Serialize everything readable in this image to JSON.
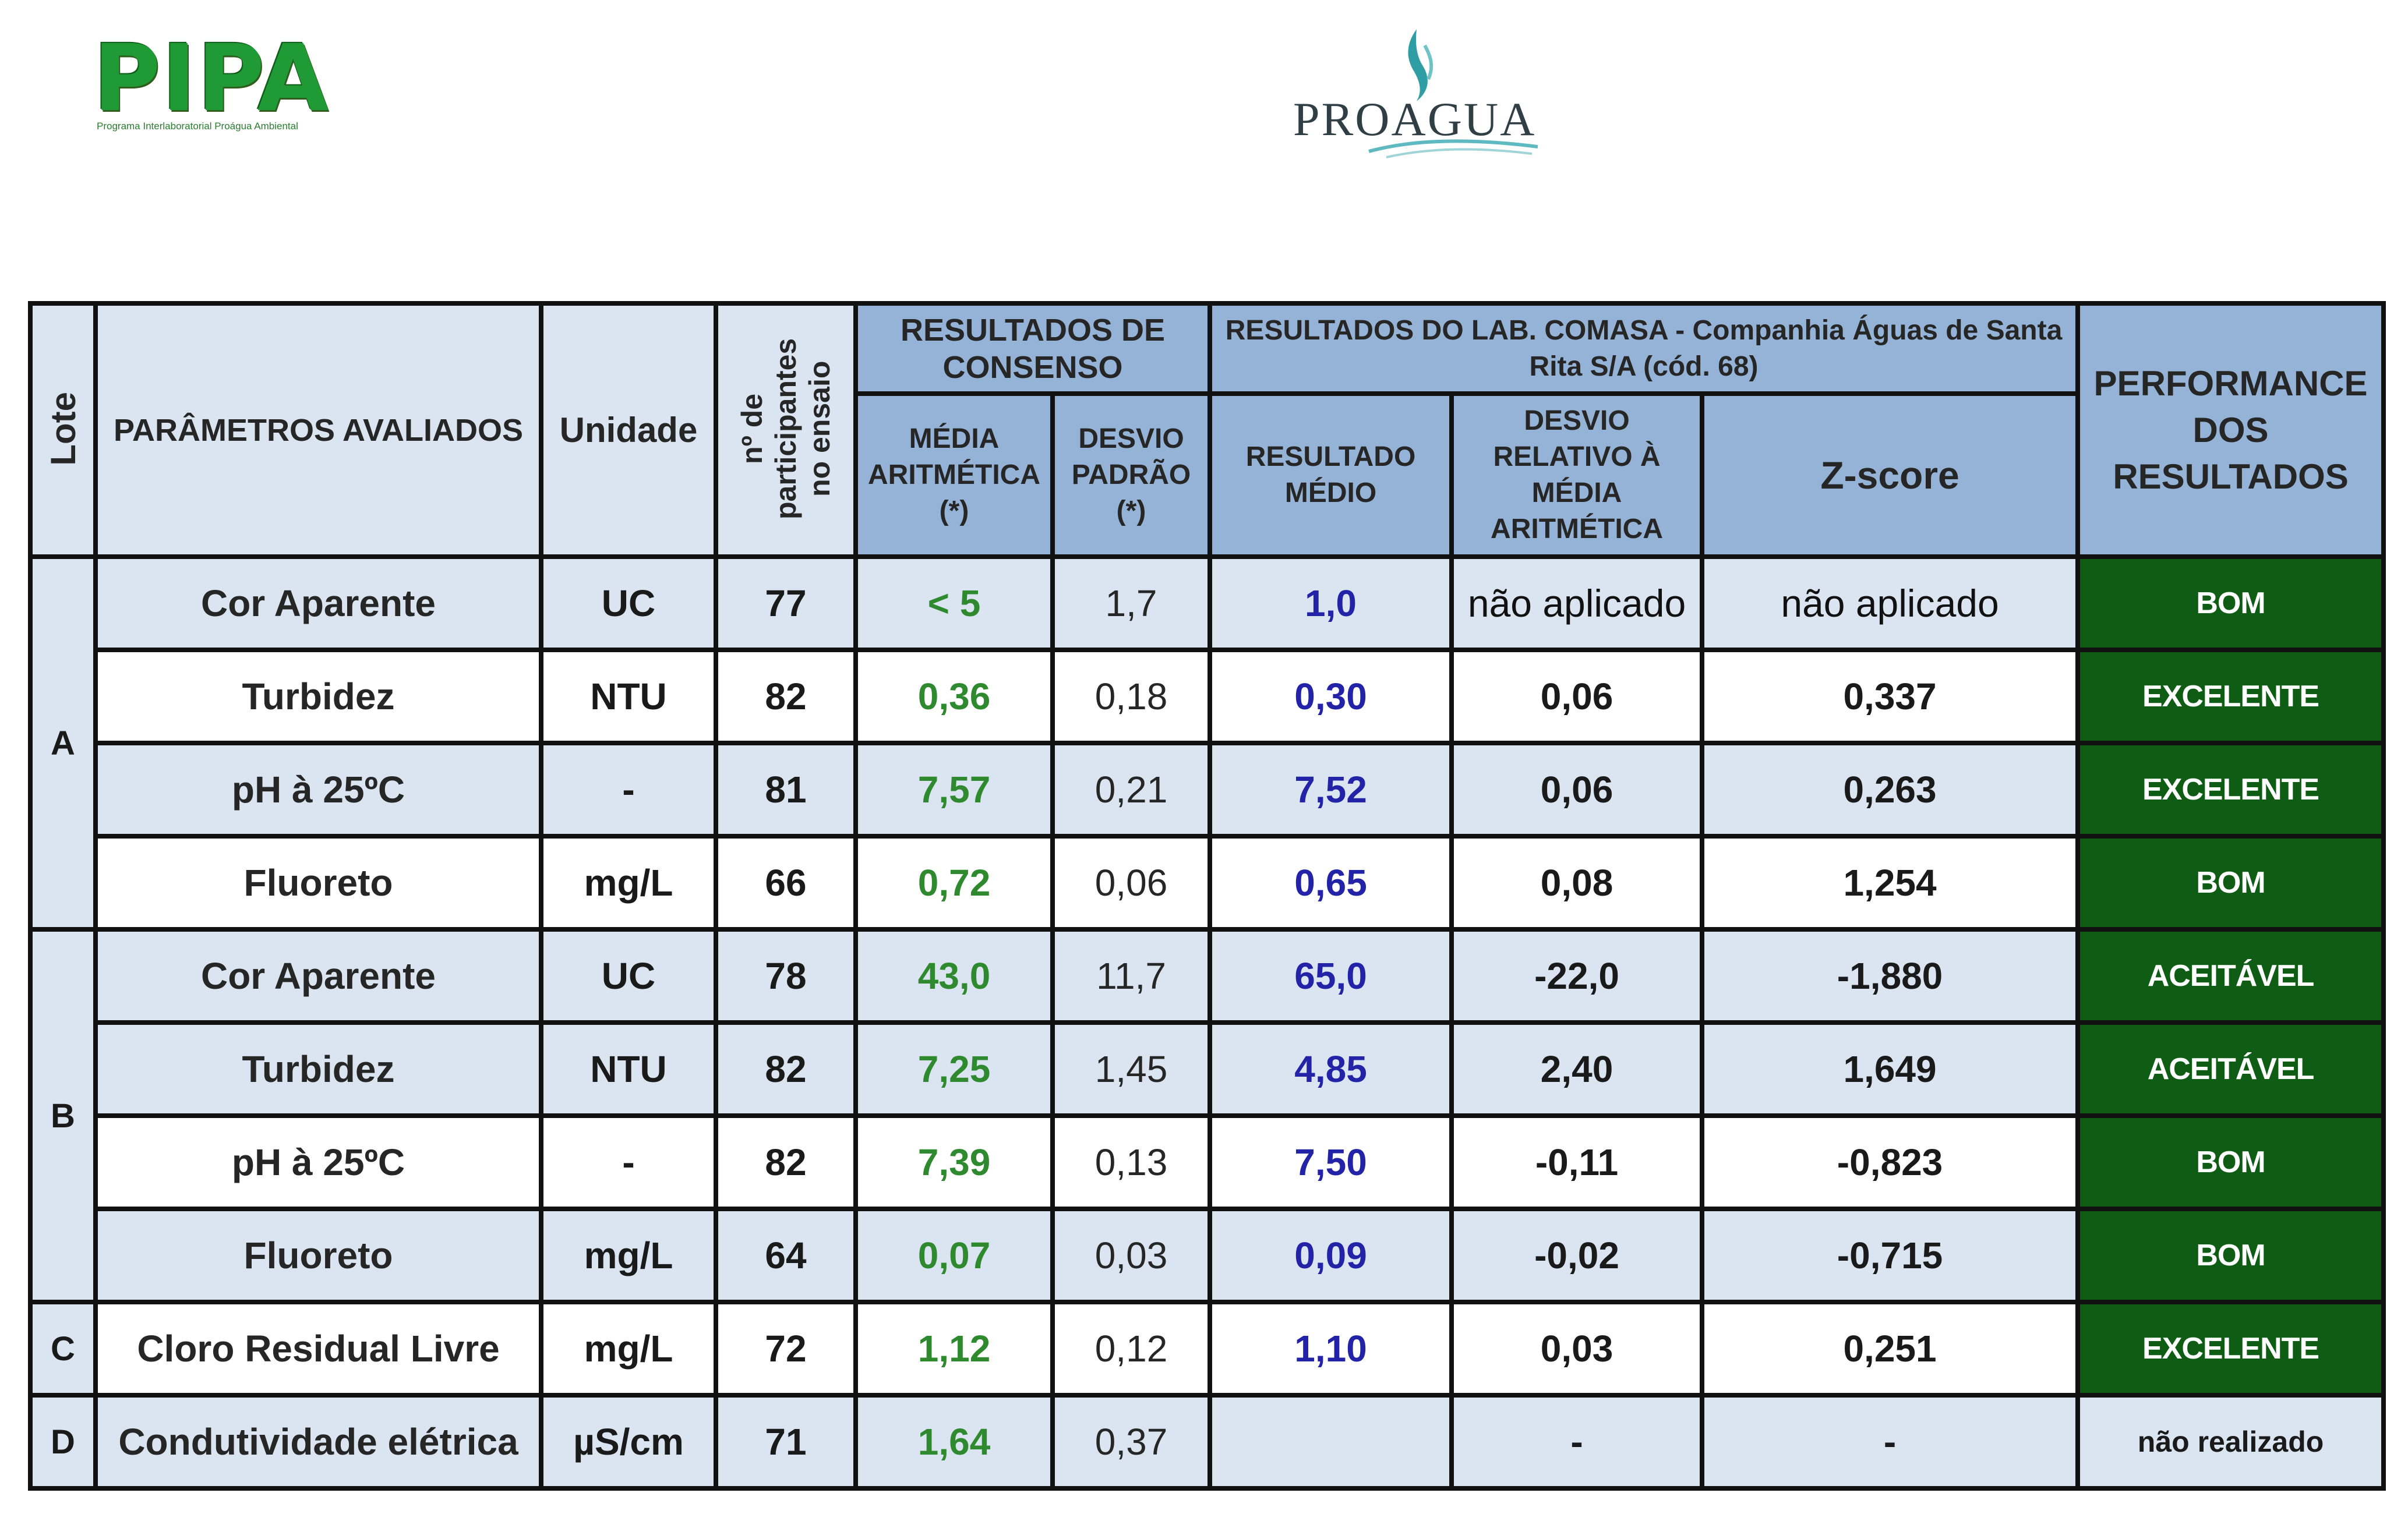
{
  "logos": {
    "pipa": {
      "title": "PIPA",
      "subtitle": "Programa Interlaboratorial Proágua Ambiental"
    },
    "proagua": {
      "title": "PROAGUA"
    }
  },
  "table": {
    "headers": {
      "lote": "Lote",
      "parametros": "PARÂMETROS AVALIADOS",
      "unidade": "Unidade",
      "participantes": "nº de participantes no ensaio",
      "consenso": "RESULTADOS DE CONSENSO",
      "media": "MÉDIA ARITMÉTICA (*)",
      "desvio_padrao": "DESVIO PADRÃO (*)",
      "lab": "RESULTADOS DO LAB. COMASA - Companhia Águas de Santa Rita S/A (cód. 68)",
      "resultado_medio": "RESULTADO MÉDIO",
      "desvio_relativo": "DESVIO RELATIVO À MÉDIA ARITMÉTICA",
      "zscore": "Z-score",
      "performance": "PERFORMANCE DOS RESULTADOS"
    },
    "lotes": [
      {
        "label": "A",
        "rows": [
          {
            "param": "Cor Aparente",
            "unidade": "UC",
            "n": "77",
            "media": "< 5",
            "desvio": "1,7",
            "resultado": "1,0",
            "desvio_rel": "não aplicado",
            "zscore": "não aplicado",
            "performance": "BOM"
          },
          {
            "param": "Turbidez",
            "unidade": "NTU",
            "n": "82",
            "media": "0,36",
            "desvio": "0,18",
            "resultado": "0,30",
            "desvio_rel": "0,06",
            "zscore": "0,337",
            "performance": "EXCELENTE"
          },
          {
            "param": "pH à 25ºC",
            "unidade": "-",
            "n": "81",
            "media": "7,57",
            "desvio": "0,21",
            "resultado": "7,52",
            "desvio_rel": "0,06",
            "zscore": "0,263",
            "performance": "EXCELENTE"
          },
          {
            "param": "Fluoreto",
            "unidade": "mg/L",
            "n": "66",
            "media": "0,72",
            "desvio": "0,06",
            "resultado": "0,65",
            "desvio_rel": "0,08",
            "zscore": "1,254",
            "performance": "BOM"
          }
        ]
      },
      {
        "label": "B",
        "rows": [
          {
            "param": "Cor Aparente",
            "unidade": "UC",
            "n": "78",
            "media": "43,0",
            "desvio": "11,7",
            "resultado": "65,0",
            "desvio_rel": "-22,0",
            "zscore": "-1,880",
            "performance": "ACEITÁVEL"
          },
          {
            "param": "Turbidez",
            "unidade": "NTU",
            "n": "82",
            "media": "7,25",
            "desvio": "1,45",
            "resultado": "4,85",
            "desvio_rel": "2,40",
            "zscore": "1,649",
            "performance": "ACEITÁVEL"
          },
          {
            "param": "pH à 25ºC",
            "unidade": "-",
            "n": "82",
            "media": "7,39",
            "desvio": "0,13",
            "resultado": "7,50",
            "desvio_rel": "-0,11",
            "zscore": "-0,823",
            "performance": "BOM"
          },
          {
            "param": "Fluoreto",
            "unidade": "mg/L",
            "n": "64",
            "media": "0,07",
            "desvio": "0,03",
            "resultado": "0,09",
            "desvio_rel": "-0,02",
            "zscore": "-0,715",
            "performance": "BOM"
          }
        ]
      },
      {
        "label": "C",
        "rows": [
          {
            "param": "Cloro Residual Livre",
            "unidade": "mg/L",
            "n": "72",
            "media": "1,12",
            "desvio": "0,12",
            "resultado": "1,10",
            "desvio_rel": "0,03",
            "zscore": "0,251",
            "performance": "EXCELENTE"
          }
        ]
      },
      {
        "label": "D",
        "rows": [
          {
            "param": "Condutividade elétrica",
            "unidade": "µS/cm",
            "n": "71",
            "media": "1,64",
            "desvio": "0,37",
            "resultado": "",
            "desvio_rel": "-",
            "zscore": "-",
            "performance": "não realizado"
          }
        ]
      }
    ]
  },
  "colors": {
    "header_light": "#dbe5f1",
    "header_blue": "#95b3d7",
    "performance_green": "#0f5d14",
    "consensus_value_green": "#2f8a2f",
    "lab_value_blue": "#2323a8"
  }
}
